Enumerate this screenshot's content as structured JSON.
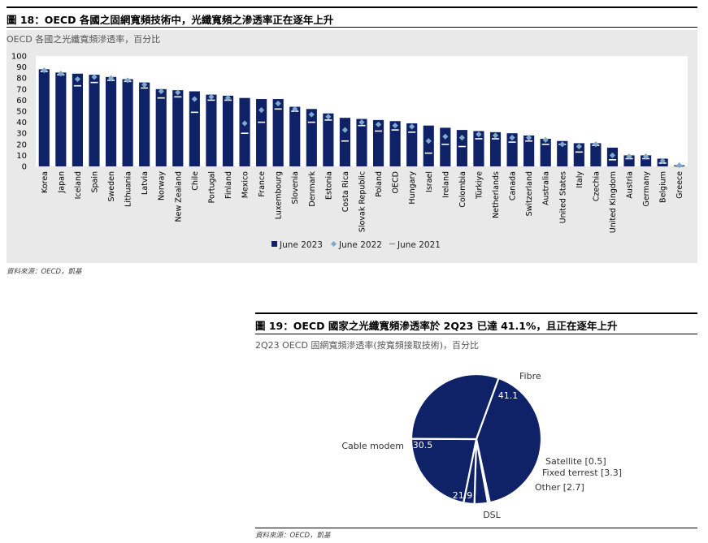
{
  "figure18": {
    "title": "圖 18：OECD 各國之固網寬頻技術中，光纖寬頻之滲透率正在逐年上升",
    "subtitle": "OECD 各國之光纖寬頻滲透率，百分比",
    "source": "資料來源：OECD，凱基"
  },
  "figure19": {
    "title": "圖 19：OECD 國家之光纖寬頻滲透率於 2Q23 已達 41.1%，且正在逐年上升",
    "subtitle": "2Q23 OECD 固網寬頻滲透率(按寬頻接取技術)，百分比",
    "source": "資料來源：OECD，凱基"
  },
  "colors": {
    "bar": "#0f2167",
    "diamond": "#7fa8cc",
    "dash": "#ffffff",
    "pie": "#0f2167",
    "panel": "#e9e9e9"
  },
  "chart_data": [
    {
      "type": "bar",
      "ylim": [
        0,
        100
      ],
      "yticks": [
        "0",
        "10",
        "20",
        "30",
        "40",
        "50",
        "60",
        "70",
        "80",
        "90",
        "100"
      ],
      "categories": [
        "Korea",
        "Japan",
        "Iceland",
        "Spain",
        "Sweden",
        "Lithuania",
        "Latvia",
        "Norway",
        "New Zealand",
        "Chile",
        "Portugal",
        "Finland",
        "Mexico",
        "France",
        "Luxembourg",
        "Slovenia",
        "Denmark",
        "Estonia",
        "Costa Rica",
        "Slovak Republic",
        "Poland",
        "OECD",
        "Hungary",
        "Israel",
        "Ireland",
        "Colombia",
        "Türkiye",
        "Netherlands",
        "Canada",
        "Switzerland",
        "Australia",
        "United States",
        "Italy",
        "Czechia",
        "United Kingdom",
        "Austria",
        "Germany",
        "Belgium",
        "Greece"
      ],
      "series": [
        {
          "name": "June 2023",
          "mark": "bar",
          "values": [
            88,
            85,
            84,
            83,
            81,
            79,
            76,
            70,
            69,
            68,
            65,
            64,
            62,
            61,
            61,
            54,
            52,
            48,
            44,
            43,
            42,
            41,
            39,
            37,
            35,
            33,
            32,
            31,
            30,
            28,
            25,
            23,
            21,
            21,
            17,
            10,
            10,
            7,
            1
          ]
        },
        {
          "name": "June 2022",
          "mark": "diamond",
          "values": [
            87,
            84,
            79,
            81,
            80,
            78,
            74,
            68,
            67,
            61,
            63,
            62,
            39,
            51,
            57,
            52,
            47,
            45,
            33,
            40,
            38,
            37,
            36,
            23,
            27,
            26,
            29,
            28,
            26,
            26,
            24,
            20,
            18,
            20,
            10,
            9,
            9,
            5,
            1
          ]
        },
        {
          "name": "June 2021",
          "mark": "dash",
          "values": [
            86,
            83,
            73,
            76,
            78,
            77,
            71,
            62,
            63,
            49,
            60,
            60,
            30,
            40,
            52,
            50,
            40,
            42,
            23,
            37,
            32,
            33,
            31,
            12,
            20,
            18,
            25,
            25,
            22,
            23,
            20,
            20,
            13,
            19,
            6,
            7,
            7,
            3,
            0
          ]
        }
      ]
    },
    {
      "type": "pie",
      "slices": [
        {
          "label": "Fibre",
          "value": 41.1,
          "value_text": "41.1"
        },
        {
          "label": "Satellite [0.5]",
          "value": 0.5
        },
        {
          "label": "Fixed terrest [3.3]",
          "value": 3.3
        },
        {
          "label": "Other [2.7]",
          "value": 2.7
        },
        {
          "label": "DSL",
          "value": 21.9,
          "value_text": "21.9"
        },
        {
          "label": "Cable modem",
          "value": 30.5,
          "value_text": "30.5"
        }
      ]
    }
  ]
}
